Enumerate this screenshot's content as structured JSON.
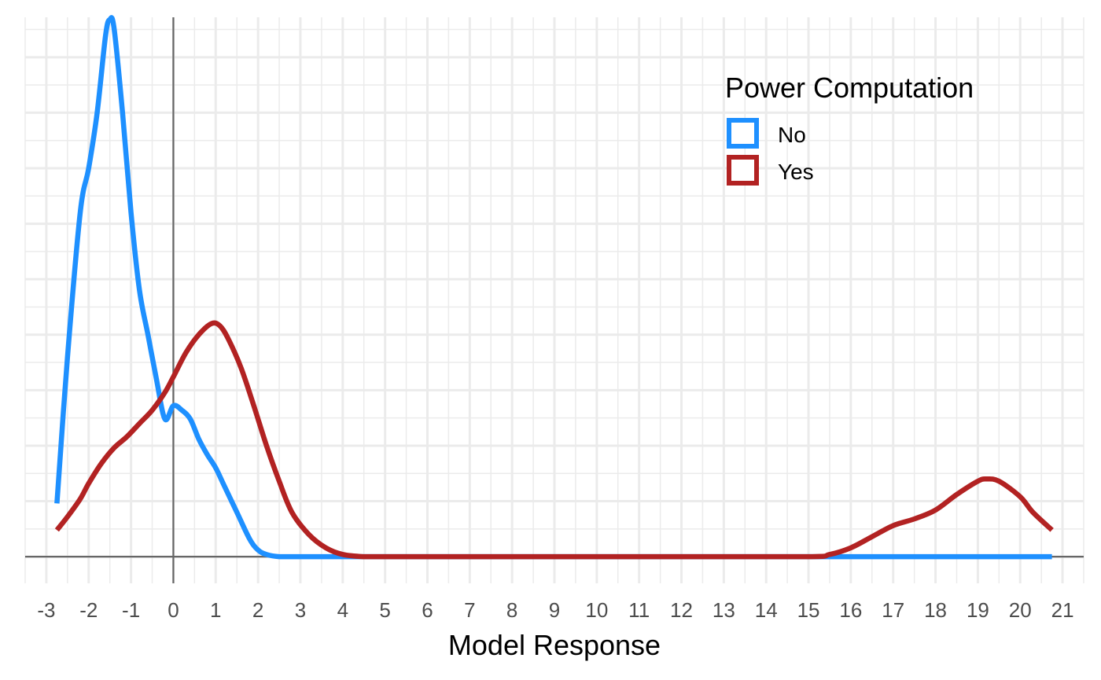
{
  "chart_data": {
    "type": "line",
    "xlabel": "Model Response",
    "ylabel": "",
    "title": "",
    "xlim": [
      -3.5,
      21.5
    ],
    "ylim": [
      -0.012,
      0.243
    ],
    "xticks": [
      "-3",
      "-2",
      "-1",
      "0",
      "1",
      "2",
      "3",
      "4",
      "5",
      "6",
      "7",
      "8",
      "9",
      "10",
      "11",
      "12",
      "13",
      "14",
      "15",
      "16",
      "17",
      "18",
      "19",
      "20",
      "21"
    ],
    "grid": true,
    "vline_x": 0,
    "hline_y": 0,
    "legend": {
      "title": "Power Computation",
      "position": "top-right"
    },
    "series": [
      {
        "name": "No",
        "color": "#1E90FF",
        "x": [
          -2.75,
          -2.5,
          -2.2,
          -2.0,
          -1.8,
          -1.6,
          -1.5,
          -1.4,
          -1.2,
          -1.0,
          -0.8,
          -0.6,
          -0.4,
          -0.2,
          0.0,
          0.2,
          0.4,
          0.6,
          0.8,
          1.0,
          1.2,
          1.5,
          1.8,
          2.0,
          2.2,
          2.5,
          3.0,
          4.0,
          6.0,
          10.0,
          14.0,
          18.0,
          20.75
        ],
        "y": [
          0.024,
          0.09,
          0.155,
          0.175,
          0.2,
          0.235,
          0.242,
          0.238,
          0.2,
          0.155,
          0.12,
          0.1,
          0.08,
          0.062,
          0.068,
          0.066,
          0.062,
          0.053,
          0.046,
          0.04,
          0.032,
          0.02,
          0.008,
          0.003,
          0.001,
          0.0,
          0.0,
          0.0,
          0.0,
          0.0,
          0.0,
          0.0,
          0.0
        ]
      },
      {
        "name": "Yes",
        "color": "#B22222",
        "x": [
          -2.75,
          -2.5,
          -2.2,
          -2.0,
          -1.7,
          -1.4,
          -1.1,
          -0.8,
          -0.5,
          -0.2,
          0.0,
          0.3,
          0.6,
          0.9,
          1.1,
          1.3,
          1.6,
          1.9,
          2.2,
          2.5,
          2.8,
          3.2,
          3.6,
          4.0,
          4.5,
          5.0,
          8.0,
          12.0,
          15.0,
          15.5,
          16.0,
          16.5,
          17.0,
          17.5,
          18.0,
          18.5,
          19.0,
          19.2,
          19.5,
          20.0,
          20.3,
          20.75
        ],
        "y": [
          0.012,
          0.018,
          0.026,
          0.033,
          0.042,
          0.049,
          0.054,
          0.06,
          0.066,
          0.074,
          0.081,
          0.092,
          0.1,
          0.105,
          0.104,
          0.098,
          0.085,
          0.068,
          0.05,
          0.034,
          0.02,
          0.01,
          0.004,
          0.001,
          0.0,
          0.0,
          0.0,
          0.0,
          0.0,
          0.001,
          0.004,
          0.009,
          0.014,
          0.017,
          0.021,
          0.028,
          0.034,
          0.035,
          0.034,
          0.027,
          0.02,
          0.012
        ]
      }
    ]
  }
}
